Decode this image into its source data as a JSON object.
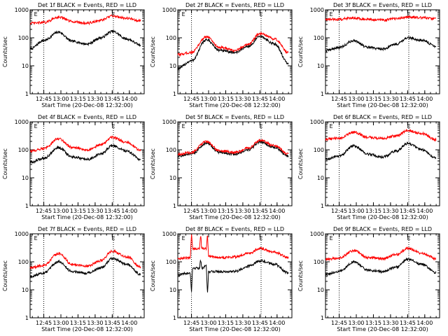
{
  "chart_data": [
    {
      "type": "line",
      "title": "Det 1f BLACK = Events, RED = LLD",
      "xlabel": "Start Time (20-Dec-08 12:32:00)",
      "ylabel": "Counts/sec",
      "yscale": "log",
      "ylim": [
        1,
        1000
      ],
      "xlim": [
        "12:33",
        "14:13"
      ],
      "x_ticks": [
        "12:45",
        "13:00",
        "13:15",
        "13:30",
        "13:45",
        "14:00"
      ],
      "y_ticks": [
        "1",
        "10",
        "100",
        "1000"
      ],
      "markers": [
        {
          "label": "E",
          "x": "12:38"
        },
        {
          "label": "E",
          "x": "13:46"
        }
      ],
      "vlines": [
        "12:45",
        "13:46"
      ],
      "grid": false,
      "series": [
        {
          "color": "#000000",
          "x": [
            "12:33",
            "12:45",
            "12:58",
            "13:10",
            "13:23",
            "13:35",
            "13:45",
            "13:58",
            "14:10"
          ],
          "values": [
            40,
            80,
            160,
            75,
            60,
            100,
            170,
            90,
            55
          ]
        },
        {
          "color": "#ff0000",
          "x": [
            "12:33",
            "12:45",
            "12:58",
            "13:10",
            "13:23",
            "13:35",
            "13:45",
            "13:58",
            "14:10"
          ],
          "values": [
            330,
            350,
            550,
            380,
            330,
            420,
            600,
            500,
            400
          ]
        }
      ]
    },
    {
      "type": "line",
      "title": "Det 2f BLACK = Events, RED = LLD",
      "xlabel": "Start Time (20-Dec-08 12:32:00)",
      "ylabel": "Counts/sec",
      "yscale": "log",
      "ylim": [
        1,
        1000
      ],
      "xlim": [
        "12:33",
        "14:13"
      ],
      "x_ticks": [
        "12:45",
        "13:00",
        "13:15",
        "13:30",
        "13:45",
        "14:00"
      ],
      "y_ticks": [
        "1",
        "10",
        "100",
        "1000"
      ],
      "markers": [
        {
          "label": "E",
          "x": "12:38"
        },
        {
          "label": "E",
          "x": "13:46"
        }
      ],
      "vlines": [
        "12:45",
        "13:46"
      ],
      "grid": false,
      "series": [
        {
          "color": "#000000",
          "x": [
            "12:33",
            "12:45",
            "12:58",
            "13:10",
            "13:23",
            "13:35",
            "13:45",
            "13:58",
            "14:10"
          ],
          "values": [
            8,
            15,
            85,
            35,
            30,
            50,
            110,
            60,
            12
          ]
        },
        {
          "color": "#ff0000",
          "x": [
            "12:33",
            "12:45",
            "12:58",
            "13:10",
            "13:23",
            "13:35",
            "13:45",
            "13:58",
            "14:10"
          ],
          "values": [
            25,
            30,
            110,
            45,
            35,
            60,
            140,
            90,
            30
          ]
        }
      ]
    },
    {
      "type": "line",
      "title": "Det 3f BLACK = Events, RED = LLD",
      "xlabel": "Start Time (20-Dec-08 12:32:00)",
      "ylabel": "Counts/sec",
      "yscale": "log",
      "ylim": [
        1,
        1000
      ],
      "xlim": [
        "12:33",
        "14:13"
      ],
      "x_ticks": [
        "12:45",
        "13:00",
        "13:15",
        "13:30",
        "13:45",
        "14:00"
      ],
      "y_ticks": [
        "1",
        "10",
        "100",
        "1000"
      ],
      "markers": [
        {
          "label": "E",
          "x": "12:38"
        },
        {
          "label": "E",
          "x": "13:46"
        }
      ],
      "vlines": [
        "12:45",
        "13:46"
      ],
      "grid": false,
      "series": [
        {
          "color": "#000000",
          "x": [
            "12:33",
            "12:45",
            "12:58",
            "13:10",
            "13:23",
            "13:35",
            "13:45",
            "13:58",
            "14:10"
          ],
          "values": [
            35,
            45,
            80,
            45,
            40,
            60,
            100,
            80,
            50
          ]
        },
        {
          "color": "#ff0000",
          "x": [
            "12:33",
            "12:45",
            "12:58",
            "13:10",
            "13:23",
            "13:35",
            "13:45",
            "13:58",
            "14:10"
          ],
          "values": [
            450,
            460,
            520,
            450,
            430,
            480,
            550,
            520,
            480
          ]
        }
      ]
    },
    {
      "type": "line",
      "title": "Det 4f BLACK = Events, RED = LLD",
      "xlabel": "Start Time (20-Dec-08 12:32:00)",
      "ylabel": "Counts/sec",
      "yscale": "log",
      "ylim": [
        1,
        1000
      ],
      "xlim": [
        "12:33",
        "14:13"
      ],
      "x_ticks": [
        "12:45",
        "13:00",
        "13:15",
        "13:30",
        "13:45",
        "14:00"
      ],
      "y_ticks": [
        "1",
        "10",
        "100",
        "1000"
      ],
      "markers": [
        {
          "label": "E",
          "x": "12:38"
        },
        {
          "label": "E",
          "x": "13:46"
        }
      ],
      "vlines": [
        "12:45",
        "13:46"
      ],
      "grid": false,
      "series": [
        {
          "color": "#000000",
          "x": [
            "12:33",
            "12:45",
            "12:58",
            "13:10",
            "13:23",
            "13:35",
            "13:45",
            "13:58",
            "14:10"
          ],
          "values": [
            35,
            50,
            120,
            55,
            45,
            70,
            140,
            90,
            45
          ]
        },
        {
          "color": "#ff0000",
          "x": [
            "12:33",
            "12:45",
            "12:58",
            "13:10",
            "13:23",
            "13:35",
            "13:45",
            "13:58",
            "14:10"
          ],
          "values": [
            90,
            110,
            250,
            120,
            100,
            150,
            280,
            180,
            95
          ]
        }
      ]
    },
    {
      "type": "line",
      "title": "Det 5f BLACK = Events, RED = LLD",
      "xlabel": "Start Time (20-Dec-08 12:32:00)",
      "ylabel": "Counts/sec",
      "yscale": "log",
      "ylim": [
        1,
        1000
      ],
      "xlim": [
        "12:33",
        "14:13"
      ],
      "x_ticks": [
        "12:45",
        "13:00",
        "13:15",
        "13:30",
        "13:45",
        "14:00"
      ],
      "y_ticks": [
        "1",
        "10",
        "100",
        "1000"
      ],
      "markers": [
        {
          "label": "E",
          "x": "12:38"
        },
        {
          "label": "E",
          "x": "13:46"
        }
      ],
      "vlines": [
        "12:45",
        "13:46"
      ],
      "grid": false,
      "series": [
        {
          "color": "#000000",
          "x": [
            "12:33",
            "12:45",
            "12:58",
            "13:10",
            "13:23",
            "13:35",
            "13:45",
            "13:58",
            "14:10"
          ],
          "values": [
            60,
            70,
            170,
            80,
            70,
            100,
            190,
            120,
            60
          ]
        },
        {
          "color": "#ff0000",
          "x": [
            "12:33",
            "12:45",
            "12:58",
            "13:10",
            "13:23",
            "13:35",
            "13:45",
            "13:58",
            "14:10"
          ],
          "values": [
            70,
            80,
            200,
            90,
            80,
            115,
            220,
            140,
            70
          ]
        }
      ]
    },
    {
      "type": "line",
      "title": "Det 6f BLACK = Events, RED = LLD",
      "xlabel": "Start Time (20-Dec-08 12:32:00)",
      "ylabel": "Counts/sec",
      "yscale": "log",
      "ylim": [
        1,
        1000
      ],
      "xlim": [
        "12:33",
        "14:13"
      ],
      "x_ticks": [
        "12:45",
        "13:00",
        "13:15",
        "13:30",
        "13:45",
        "14:00"
      ],
      "y_ticks": [
        "1",
        "10",
        "100",
        "1000"
      ],
      "markers": [
        {
          "label": "E",
          "x": "12:38"
        },
        {
          "label": "E",
          "x": "13:46"
        }
      ],
      "vlines": [
        "12:45",
        "13:46"
      ],
      "grid": false,
      "series": [
        {
          "color": "#000000",
          "x": [
            "12:33",
            "12:45",
            "12:58",
            "13:10",
            "13:23",
            "13:35",
            "13:45",
            "13:58",
            "14:10"
          ],
          "values": [
            45,
            60,
            140,
            70,
            55,
            90,
            170,
            100,
            50
          ]
        },
        {
          "color": "#ff0000",
          "x": [
            "12:33",
            "12:45",
            "12:58",
            "13:10",
            "13:23",
            "13:35",
            "13:45",
            "13:58",
            "14:10"
          ],
          "values": [
            240,
            260,
            420,
            280,
            250,
            320,
            480,
            380,
            230
          ]
        }
      ]
    },
    {
      "type": "line",
      "title": "Det 7f BLACK = Events, RED = LLD",
      "xlabel": "Start Time (20-Dec-08 12:32:00)",
      "ylabel": "Counts/sec",
      "yscale": "log",
      "ylim": [
        1,
        1000
      ],
      "xlim": [
        "12:33",
        "14:13"
      ],
      "x_ticks": [
        "12:45",
        "13:00",
        "13:15",
        "13:30",
        "13:45",
        "14:00"
      ],
      "y_ticks": [
        "1",
        "10",
        "100",
        "1000"
      ],
      "markers": [
        {
          "label": "E",
          "x": "12:38"
        },
        {
          "label": "E",
          "x": "13:46"
        }
      ],
      "vlines": [
        "12:45",
        "13:46"
      ],
      "grid": false,
      "series": [
        {
          "color": "#000000",
          "x": [
            "12:33",
            "12:45",
            "12:58",
            "13:10",
            "13:23",
            "13:35",
            "13:45",
            "13:58",
            "14:10"
          ],
          "values": [
            30,
            40,
            100,
            45,
            40,
            60,
            130,
            80,
            35
          ]
        },
        {
          "color": "#ff0000",
          "x": [
            "12:33",
            "12:45",
            "12:58",
            "13:10",
            "13:23",
            "13:35",
            "13:45",
            "13:58",
            "14:10"
          ],
          "values": [
            60,
            75,
            200,
            80,
            70,
            110,
            240,
            150,
            65
          ]
        }
      ]
    },
    {
      "type": "line",
      "title": "Det 8f BLACK = Events, RED = LLD",
      "xlabel": "Start Time (20-Dec-08 12:32:00)",
      "ylabel": "Counts/sec",
      "yscale": "log",
      "ylim": [
        1,
        1000
      ],
      "xlim": [
        "12:33",
        "14:13"
      ],
      "x_ticks": [
        "12:45",
        "13:00",
        "13:15",
        "13:30",
        "13:45",
        "14:00"
      ],
      "y_ticks": [
        "1",
        "10",
        "100",
        "1000"
      ],
      "markers": [
        {
          "label": "E",
          "x": "12:38"
        },
        {
          "label": "E",
          "x": "13:46"
        }
      ],
      "vlines": [
        "12:45",
        "13:46"
      ],
      "grid": false,
      "series": [
        {
          "color": "#000000",
          "x": [
            "12:33",
            "12:44",
            "12:45",
            "12:46",
            "12:52",
            "12:53",
            "12:54",
            "12:58",
            "12:59",
            "13:00",
            "13:10",
            "13:23",
            "13:35",
            "13:45",
            "13:58",
            "14:10"
          ],
          "values": [
            35,
            40,
            8,
            60,
            60,
            120,
            60,
            70,
            6,
            45,
            45,
            45,
            70,
            110,
            80,
            40
          ]
        },
        {
          "color": "#ff0000",
          "x": [
            "12:33",
            "12:44",
            "12:45",
            "12:46",
            "12:52",
            "12:53",
            "12:54",
            "12:58",
            "12:59",
            "13:00",
            "13:10",
            "13:23",
            "13:35",
            "13:45",
            "13:58",
            "14:10"
          ],
          "values": [
            130,
            140,
            1000,
            300,
            300,
            1000,
            300,
            300,
            1000,
            160,
            140,
            150,
            200,
            300,
            220,
            140
          ]
        }
      ]
    },
    {
      "type": "line",
      "title": "Det 9f BLACK = Events, RED = LLD",
      "xlabel": "Start Time (20-Dec-08 12:32:00)",
      "ylabel": "Counts/sec",
      "yscale": "log",
      "ylim": [
        1,
        1000
      ],
      "xlim": [
        "12:33",
        "14:13"
      ],
      "x_ticks": [
        "12:45",
        "13:00",
        "13:15",
        "13:30",
        "13:45",
        "14:00"
      ],
      "y_ticks": [
        "1",
        "10",
        "100",
        "1000"
      ],
      "markers": [
        {
          "label": "E",
          "x": "12:38"
        },
        {
          "label": "E",
          "x": "13:46"
        }
      ],
      "vlines": [
        "12:45",
        "13:46"
      ],
      "grid": false,
      "series": [
        {
          "color": "#000000",
          "x": [
            "12:33",
            "12:45",
            "12:58",
            "13:10",
            "13:23",
            "13:35",
            "13:45",
            "13:58",
            "14:10"
          ],
          "values": [
            35,
            45,
            100,
            50,
            45,
            65,
            120,
            80,
            40
          ]
        },
        {
          "color": "#ff0000",
          "x": [
            "12:33",
            "12:45",
            "12:58",
            "13:10",
            "13:23",
            "13:35",
            "13:45",
            "13:58",
            "14:10"
          ],
          "values": [
            120,
            140,
            250,
            140,
            130,
            180,
            300,
            200,
            130
          ]
        }
      ]
    }
  ]
}
